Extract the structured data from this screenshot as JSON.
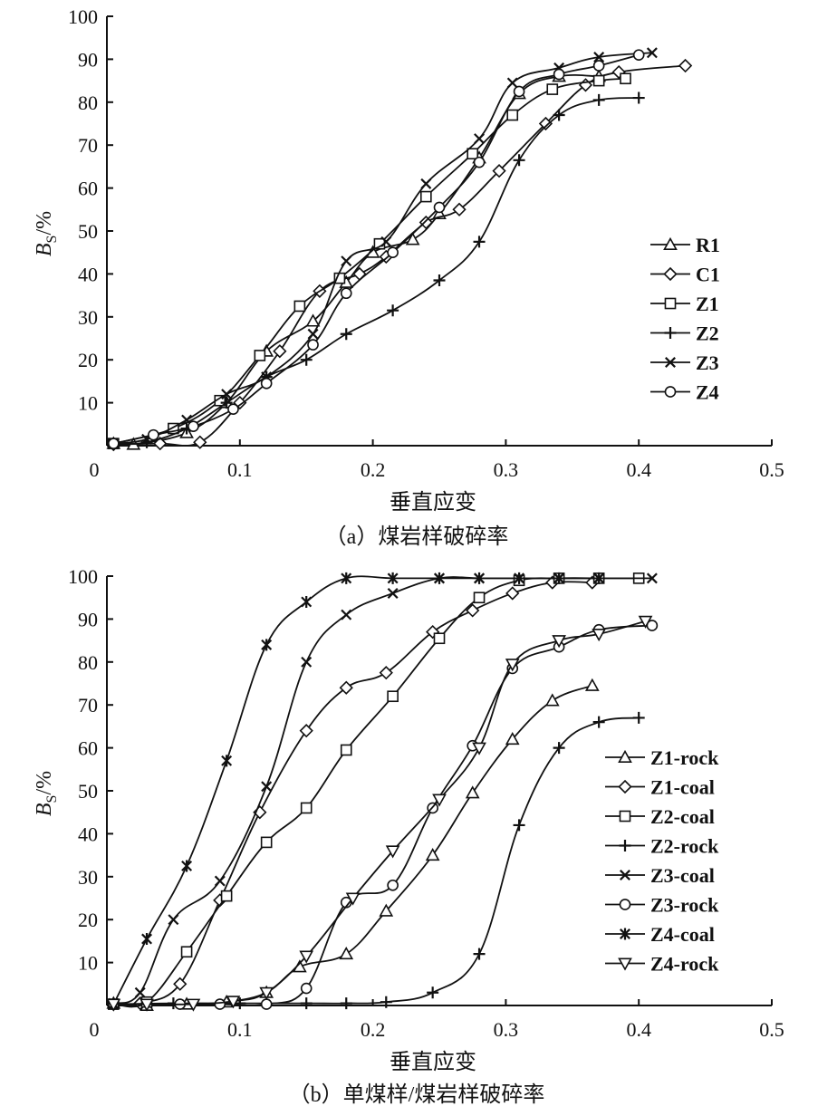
{
  "chart_data": [
    {
      "type": "line",
      "title": "",
      "caption": "（a）煤岩样破碎率",
      "xlabel": "垂直应变",
      "ylabel_main": "B",
      "ylabel_sub": "S",
      "ylabel_unit": "/%",
      "xlim": [
        0,
        0.5
      ],
      "ylim": [
        0,
        100
      ],
      "xticks": [
        "0",
        "0.1",
        "0.2",
        "0.3",
        "0.4",
        "0.5"
      ],
      "yticks": [
        "10",
        "20",
        "30",
        "40",
        "50",
        "60",
        "70",
        "80",
        "90",
        "100"
      ],
      "legend_position": "right-middle",
      "series": [
        {
          "name": "R1",
          "marker": "triangle",
          "points": [
            [
              0.005,
              0.5
            ],
            [
              0.02,
              0.3
            ],
            [
              0.06,
              3
            ],
            [
              0.09,
              10
            ],
            [
              0.12,
              22
            ],
            [
              0.155,
              29
            ],
            [
              0.18,
              38
            ],
            [
              0.2,
              45
            ],
            [
              0.23,
              48
            ],
            [
              0.25,
              54
            ],
            [
              0.28,
              67
            ],
            [
              0.31,
              82
            ],
            [
              0.34,
              86
            ],
            [
              0.37,
              86
            ]
          ]
        },
        {
          "name": "C1",
          "marker": "diamond",
          "points": [
            [
              0.005,
              0.3
            ],
            [
              0.04,
              0.5
            ],
            [
              0.07,
              0.8
            ],
            [
              0.1,
              10
            ],
            [
              0.13,
              22
            ],
            [
              0.16,
              36
            ],
            [
              0.19,
              40
            ],
            [
              0.21,
              44
            ],
            [
              0.24,
              52
            ],
            [
              0.265,
              55
            ],
            [
              0.295,
              64
            ],
            [
              0.33,
              75
            ],
            [
              0.36,
              84
            ],
            [
              0.385,
              87
            ],
            [
              0.435,
              88.5
            ]
          ]
        },
        {
          "name": "Z1",
          "marker": "square",
          "points": [
            [
              0.005,
              0.5
            ],
            [
              0.05,
              4
            ],
            [
              0.085,
              10.5
            ],
            [
              0.115,
              21
            ],
            [
              0.145,
              32.5
            ],
            [
              0.175,
              39
            ],
            [
              0.205,
              47
            ],
            [
              0.24,
              58
            ],
            [
              0.275,
              68
            ],
            [
              0.305,
              77
            ],
            [
              0.335,
              83
            ],
            [
              0.37,
              85
            ],
            [
              0.39,
              85.5
            ]
          ]
        },
        {
          "name": "Z2",
          "marker": "plus",
          "points": [
            [
              0.005,
              0.5
            ],
            [
              0.03,
              0.8
            ],
            [
              0.06,
              4
            ],
            [
              0.09,
              10
            ],
            [
              0.12,
              16
            ],
            [
              0.15,
              20
            ],
            [
              0.18,
              26
            ],
            [
              0.215,
              31.5
            ],
            [
              0.25,
              38.5
            ],
            [
              0.28,
              47.5
            ],
            [
              0.31,
              66.5
            ],
            [
              0.34,
              77
            ],
            [
              0.37,
              80.5
            ],
            [
              0.4,
              81
            ]
          ]
        },
        {
          "name": "Z3",
          "marker": "x",
          "points": [
            [
              0.005,
              0.5
            ],
            [
              0.03,
              1.5
            ],
            [
              0.06,
              6
            ],
            [
              0.09,
              12
            ],
            [
              0.12,
              16
            ],
            [
              0.155,
              26
            ],
            [
              0.18,
              43
            ],
            [
              0.21,
              47.5
            ],
            [
              0.24,
              61
            ],
            [
              0.28,
              71.5
            ],
            [
              0.305,
              84.5
            ],
            [
              0.34,
              88
            ],
            [
              0.37,
              90.5
            ],
            [
              0.41,
              91.5
            ]
          ]
        },
        {
          "name": "Z4",
          "marker": "circle",
          "points": [
            [
              0.005,
              0.5
            ],
            [
              0.035,
              2.5
            ],
            [
              0.065,
              4.5
            ],
            [
              0.095,
              8.5
            ],
            [
              0.12,
              14.5
            ],
            [
              0.155,
              23.5
            ],
            [
              0.18,
              35.5
            ],
            [
              0.215,
              45
            ],
            [
              0.25,
              55.5
            ],
            [
              0.28,
              66
            ],
            [
              0.31,
              82.5
            ],
            [
              0.34,
              86.5
            ],
            [
              0.37,
              88.5
            ],
            [
              0.4,
              91
            ]
          ]
        }
      ],
      "legend": [
        "R1",
        "C1",
        "Z1",
        "Z2",
        "Z3",
        "Z4"
      ]
    },
    {
      "type": "line",
      "title": "",
      "caption": "（b）单煤样/煤岩样破碎率",
      "xlabel": "垂直应变",
      "ylabel_main": "B",
      "ylabel_sub": "S",
      "ylabel_unit": "/%",
      "xlim": [
        0,
        0.5
      ],
      "ylim": [
        0,
        100
      ],
      "xticks": [
        "0",
        "0.1",
        "0.2",
        "0.3",
        "0.4",
        "0.5"
      ],
      "yticks": [
        "10",
        "20",
        "30",
        "40",
        "50",
        "60",
        "70",
        "80",
        "90",
        "100"
      ],
      "legend_position": "right-bottom",
      "series": [
        {
          "name": "Z1-rock",
          "marker": "triangle",
          "points": [
            [
              0.005,
              0.5
            ],
            [
              0.03,
              0
            ],
            [
              0.06,
              0.3
            ],
            [
              0.09,
              0.8
            ],
            [
              0.12,
              3
            ],
            [
              0.145,
              9
            ],
            [
              0.18,
              12
            ],
            [
              0.21,
              22
            ],
            [
              0.245,
              35
            ],
            [
              0.275,
              49.5
            ],
            [
              0.305,
              62
            ],
            [
              0.335,
              71
            ],
            [
              0.365,
              74.5
            ]
          ]
        },
        {
          "name": "Z1-coal",
          "marker": "diamond",
          "points": [
            [
              0.005,
              0.3
            ],
            [
              0.025,
              0.5
            ],
            [
              0.055,
              5
            ],
            [
              0.085,
              24.5
            ],
            [
              0.115,
              45
            ],
            [
              0.15,
              64
            ],
            [
              0.18,
              74
            ],
            [
              0.21,
              77.5
            ],
            [
              0.245,
              87
            ],
            [
              0.275,
              92
            ],
            [
              0.305,
              96
            ],
            [
              0.335,
              98.5
            ],
            [
              0.365,
              98.5
            ]
          ]
        },
        {
          "name": "Z2-coal",
          "marker": "square",
          "points": [
            [
              0.005,
              0.3
            ],
            [
              0.03,
              0.8
            ],
            [
              0.06,
              12.5
            ],
            [
              0.09,
              25.5
            ],
            [
              0.12,
              38
            ],
            [
              0.15,
              46
            ],
            [
              0.18,
              59.5
            ],
            [
              0.215,
              72
            ],
            [
              0.25,
              85.5
            ],
            [
              0.28,
              95
            ],
            [
              0.31,
              99
            ],
            [
              0.34,
              99.5
            ],
            [
              0.37,
              99.5
            ],
            [
              0.4,
              99.5
            ]
          ]
        },
        {
          "name": "Z2-rock",
          "marker": "plus",
          "points": [
            [
              0.005,
              0.3
            ],
            [
              0.05,
              0.5
            ],
            [
              0.1,
              0.5
            ],
            [
              0.15,
              0.5
            ],
            [
              0.18,
              0.5
            ],
            [
              0.21,
              0.8
            ],
            [
              0.245,
              3
            ],
            [
              0.28,
              12
            ],
            [
              0.31,
              42
            ],
            [
              0.34,
              60
            ],
            [
              0.37,
              66
            ],
            [
              0.4,
              67
            ]
          ]
        },
        {
          "name": "Z3-coal",
          "marker": "x",
          "points": [
            [
              0.005,
              0.5
            ],
            [
              0.025,
              3
            ],
            [
              0.05,
              20
            ],
            [
              0.085,
              29
            ],
            [
              0.12,
              51
            ],
            [
              0.15,
              80
            ],
            [
              0.18,
              91
            ],
            [
              0.215,
              96
            ],
            [
              0.25,
              99.5
            ],
            [
              0.28,
              99.5
            ],
            [
              0.31,
              99.5
            ],
            [
              0.34,
              99.5
            ],
            [
              0.37,
              99.5
            ],
            [
              0.41,
              99.5
            ]
          ]
        },
        {
          "name": "Z3-rock",
          "marker": "circle",
          "points": [
            [
              0.005,
              0.3
            ],
            [
              0.055,
              0.3
            ],
            [
              0.085,
              0.3
            ],
            [
              0.12,
              0.3
            ],
            [
              0.15,
              4
            ],
            [
              0.18,
              24
            ],
            [
              0.215,
              28
            ],
            [
              0.245,
              46
            ],
            [
              0.275,
              60.5
            ],
            [
              0.305,
              78.5
            ],
            [
              0.34,
              83.5
            ],
            [
              0.37,
              87.5
            ],
            [
              0.41,
              88.5
            ]
          ]
        },
        {
          "name": "Z4-coal",
          "marker": "asterisk",
          "points": [
            [
              0.005,
              0.3
            ],
            [
              0.03,
              15.5
            ],
            [
              0.06,
              32.5
            ],
            [
              0.09,
              57
            ],
            [
              0.12,
              84
            ],
            [
              0.15,
              94
            ],
            [
              0.18,
              99.5
            ],
            [
              0.215,
              99.5
            ],
            [
              0.25,
              99.5
            ],
            [
              0.28,
              99.5
            ],
            [
              0.31,
              99.5
            ],
            [
              0.34,
              99.5
            ],
            [
              0.37,
              99.5
            ]
          ]
        },
        {
          "name": "Z4-rock",
          "marker": "triangle-down",
          "points": [
            [
              0.005,
              0.3
            ],
            [
              0.03,
              0.3
            ],
            [
              0.065,
              0.3
            ],
            [
              0.095,
              1
            ],
            [
              0.12,
              3
            ],
            [
              0.15,
              11.5
            ],
            [
              0.185,
              25
            ],
            [
              0.215,
              36
            ],
            [
              0.25,
              48
            ],
            [
              0.28,
              60
            ],
            [
              0.305,
              79.5
            ],
            [
              0.34,
              85
            ],
            [
              0.37,
              86.5
            ],
            [
              0.405,
              89.5
            ]
          ]
        }
      ],
      "legend": [
        "Z1-rock",
        "Z1-coal",
        "Z2-coal",
        "Z2-rock",
        "Z3-coal",
        "Z3-rock",
        "Z4-coal",
        "Z4-rock"
      ]
    }
  ]
}
